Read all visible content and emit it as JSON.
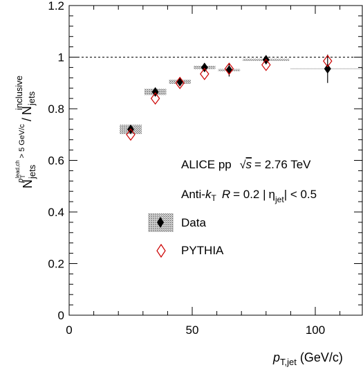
{
  "chart_data": {
    "type": "scatter",
    "xlabel": {
      "main": "p",
      "sub": "T,jet",
      "units": "(GeV/c)"
    },
    "ylabel": {
      "num_main": "N",
      "num_sub": "jets",
      "num_sup": "p",
      "num_sup_sub": "T",
      "num_sup_sup": "lead,ch",
      "num_cut": "> 5 GeV/c",
      "den_main": "N",
      "den_sub": "jets",
      "den_sup": "inclusive"
    },
    "xlim": [
      0,
      120
    ],
    "ylim": [
      0,
      1.2
    ],
    "x_ticks": [
      "0",
      "50",
      "100"
    ],
    "y_ticks": [
      "0",
      "0.2",
      "0.4",
      "0.6",
      "0.8",
      "1",
      "1.2"
    ],
    "reference_line": 1.0,
    "annotations": {
      "line1_a": "ALICE  pp",
      "line1_b": "s",
      "line1_c": "= 2.76 TeV",
      "line2_a": "Anti-",
      "line2_k": "k",
      "line2_ksub": "T",
      "line2_r": "R",
      "line2_rest": "= 0.2  |",
      "line2_eta": "η",
      "line2_etasub": "jet",
      "line2_end": "| < 0.5"
    },
    "legend": {
      "position": "center-left",
      "entries": [
        {
          "label": "Data",
          "marker": "filled-diamond-with-systematic-box"
        },
        {
          "label": "PYTHIA",
          "marker": "open-red-diamond"
        }
      ]
    },
    "series": [
      {
        "name": "Data",
        "color": "#000000",
        "points": [
          {
            "x": 25,
            "y": 0.72,
            "xlow": 20,
            "xhigh": 30,
            "stat": 0.012,
            "sys": 0.018
          },
          {
            "x": 35,
            "y": 0.865,
            "xlow": 30,
            "xhigh": 40,
            "stat": 0.012,
            "sys": 0.012
          },
          {
            "x": 45,
            "y": 0.905,
            "xlow": 40,
            "xhigh": 50,
            "stat": 0.012,
            "sys": 0.008
          },
          {
            "x": 55,
            "y": 0.96,
            "xlow": 50,
            "xhigh": 60,
            "stat": 0.015,
            "sys": 0.006
          },
          {
            "x": 65,
            "y": 0.95,
            "xlow": 60,
            "xhigh": 70,
            "stat": 0.025,
            "sys": 0.004
          },
          {
            "x": 80,
            "y": 0.99,
            "xlow": 70,
            "xhigh": 90,
            "stat": 0.015,
            "sys": 0.004
          },
          {
            "x": 105,
            "y": 0.955,
            "xlow": 90,
            "xhigh": 120,
            "stat": 0.055,
            "sys": 0.002
          }
        ]
      },
      {
        "name": "PYTHIA",
        "color": "#cc0000",
        "points": [
          {
            "x": 25,
            "y": 0.7
          },
          {
            "x": 35,
            "y": 0.84
          },
          {
            "x": 45,
            "y": 0.9
          },
          {
            "x": 55,
            "y": 0.935
          },
          {
            "x": 65,
            "y": 0.955
          },
          {
            "x": 80,
            "y": 0.97
          },
          {
            "x": 105,
            "y": 0.985
          }
        ]
      }
    ]
  }
}
